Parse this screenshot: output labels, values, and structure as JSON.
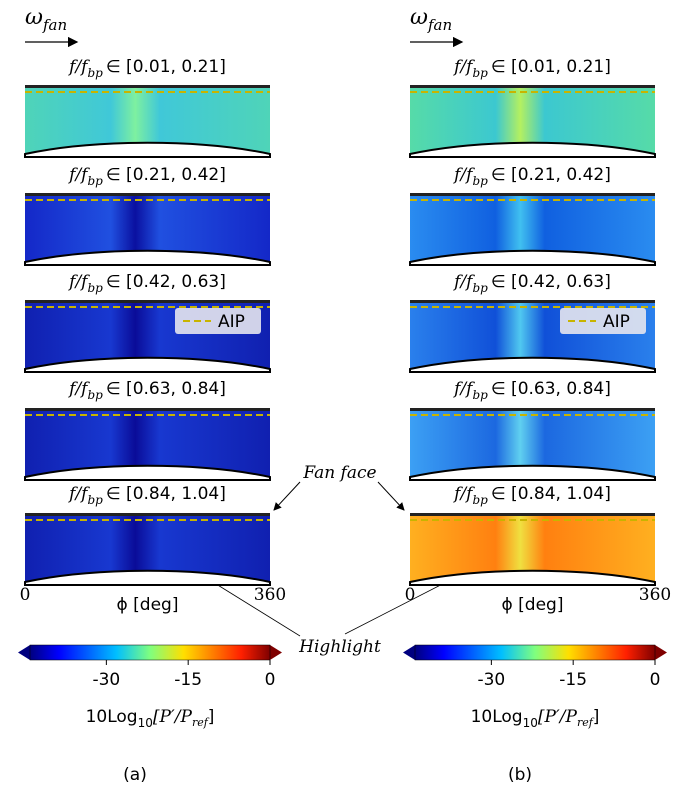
{
  "panels": [
    {
      "label": "(a)",
      "omega": {
        "symbol": "ω",
        "sub": "fan"
      },
      "plots": [
        {
          "f": "f/f",
          "sub": "bp",
          "range": "∈ [0.01, 0.21]"
        },
        {
          "f": "f/f",
          "sub": "bp",
          "range": "∈ [0.21, 0.42]"
        },
        {
          "f": "f/f",
          "sub": "bp",
          "range": "∈ [0.42, 0.63]"
        },
        {
          "f": "f/f",
          "sub": "bp",
          "range": "∈ [0.63, 0.84]"
        },
        {
          "f": "f/f",
          "sub": "bp",
          "range": "∈ [0.84, 1.04]"
        }
      ],
      "legend": "AIP",
      "xlabel": "ϕ [deg]",
      "xticks": [
        0,
        360
      ],
      "colorbar": {
        "clim": [
          -44,
          0
        ],
        "ticks": [
          -30,
          -15,
          0
        ],
        "label": {
          "main": "10Log",
          "sub": "10",
          "frac": "[P′/P",
          "frac_sub": "ref",
          "close": "]"
        }
      }
    },
    {
      "label": "(b)",
      "omega": {
        "symbol": "ω",
        "sub": "fan"
      },
      "plots": [
        {
          "f": "f/f",
          "sub": "bp",
          "range": "∈ [0.01, 0.21]"
        },
        {
          "f": "f/f",
          "sub": "bp",
          "range": "∈ [0.21, 0.42]"
        },
        {
          "f": "f/f",
          "sub": "bp",
          "range": "∈ [0.42, 0.63]"
        },
        {
          "f": "f/f",
          "sub": "bp",
          "range": "∈ [0.63, 0.84]"
        },
        {
          "f": "f/f",
          "sub": "bp",
          "range": "∈ [0.84, 1.04]"
        }
      ],
      "legend": "AIP",
      "xlabel": "ϕ [deg]",
      "xticks": [
        0,
        360
      ],
      "colorbar": {
        "clim": [
          -44,
          0
        ],
        "ticks": [
          -30,
          -15,
          0
        ],
        "label": {
          "main": "10Log",
          "sub": "10",
          "frac": "[P′/P",
          "frac_sub": "ref",
          "close": "]"
        }
      }
    }
  ],
  "annotations": {
    "fan_face": "Fan face",
    "highlight": "Highlight"
  }
}
